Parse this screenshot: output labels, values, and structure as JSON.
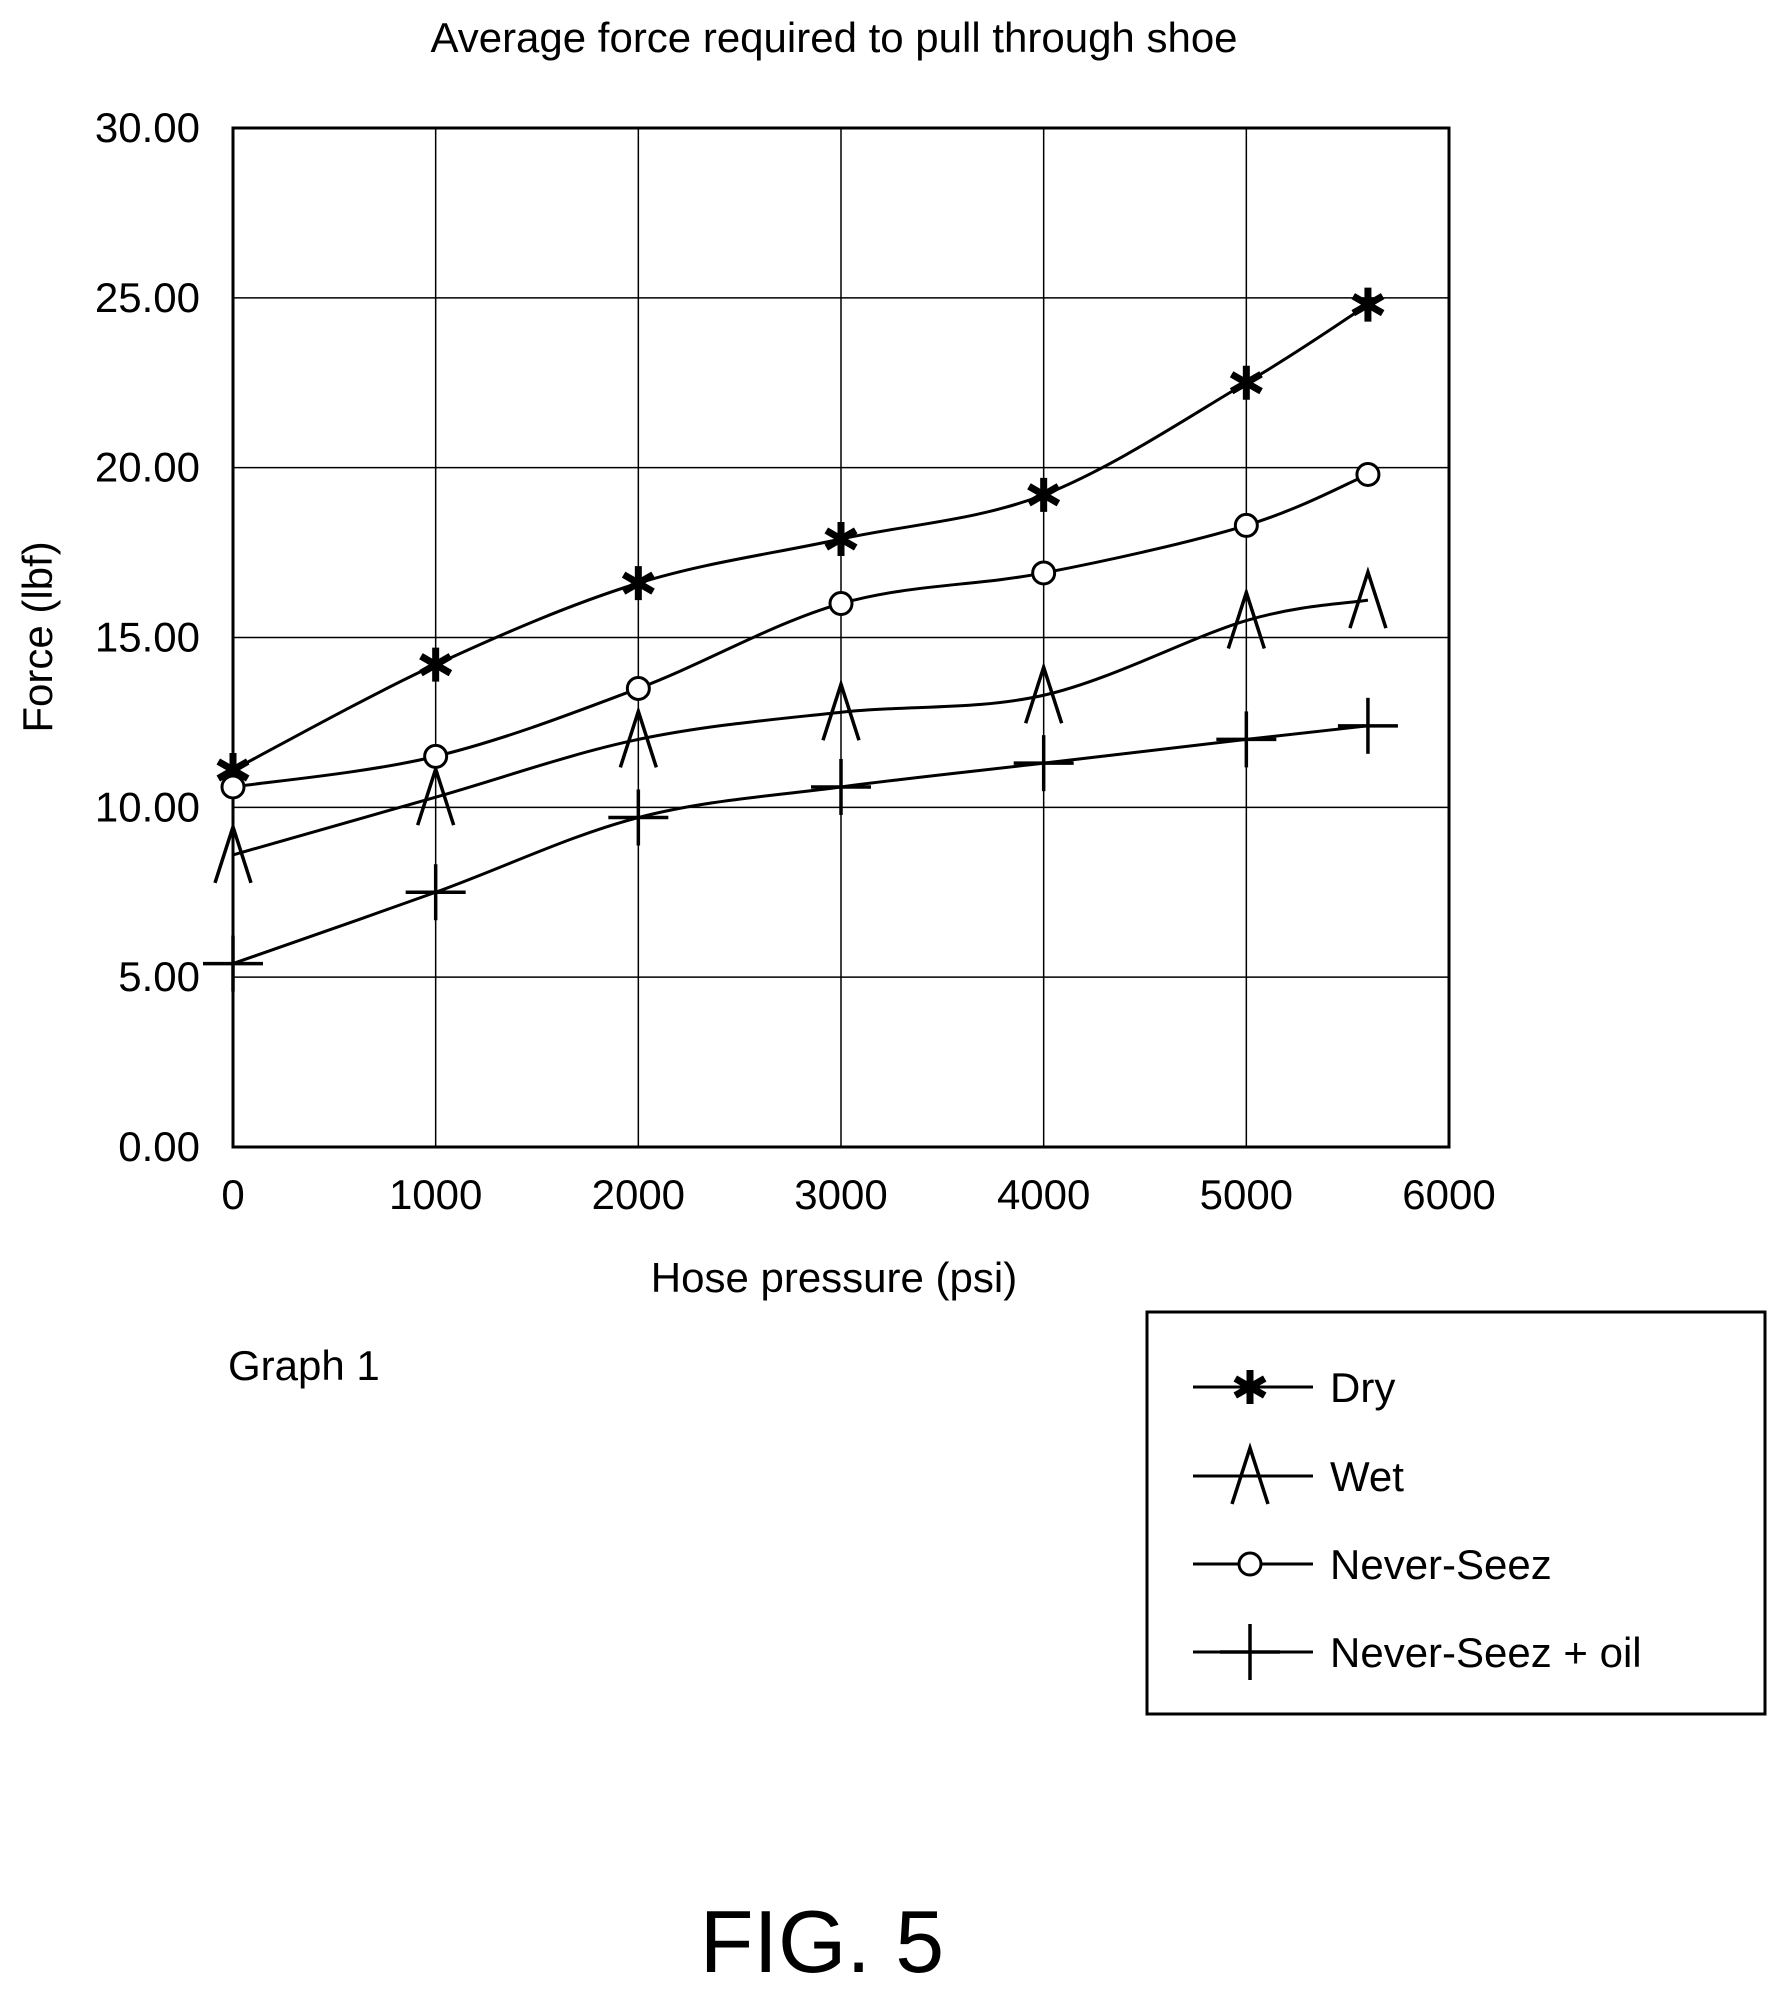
{
  "chart_data": {
    "type": "line",
    "title": "Average force required to pull through shoe",
    "xlabel": "Hose pressure (psi)",
    "ylabel": "Force (lbf)",
    "xlim": [
      0,
      6000
    ],
    "ylim": [
      0,
      30
    ],
    "x_ticks": [
      "0",
      "1000",
      "2000",
      "3000",
      "4000",
      "5000",
      "6000"
    ],
    "y_ticks": [
      "0.00",
      "5.00",
      "10.00",
      "15.00",
      "20.00",
      "25.00",
      "30.00"
    ],
    "grid": true,
    "legend_position": "bottom-right, outside plot",
    "x": [
      0,
      1000,
      2000,
      3000,
      4000,
      5000,
      5600
    ],
    "series": [
      {
        "name": "Dry",
        "marker": "asterisk",
        "values": [
          11.1,
          14.2,
          16.6,
          17.9,
          19.2,
          22.5,
          24.8
        ]
      },
      {
        "name": "Wet",
        "marker": "caret",
        "values": [
          8.6,
          10.3,
          12.0,
          12.8,
          13.3,
          15.5,
          16.1
        ]
      },
      {
        "name": "Never-Seez",
        "marker": "circle",
        "values": [
          10.6,
          11.5,
          13.5,
          16.0,
          16.9,
          18.3,
          19.8
        ]
      },
      {
        "name": "Never-Seez + oil",
        "marker": "plus",
        "values": [
          5.4,
          7.5,
          9.7,
          10.6,
          11.3,
          12.0,
          12.4
        ]
      }
    ]
  },
  "caption": "Graph 1",
  "figure_label": "FIG. 5"
}
